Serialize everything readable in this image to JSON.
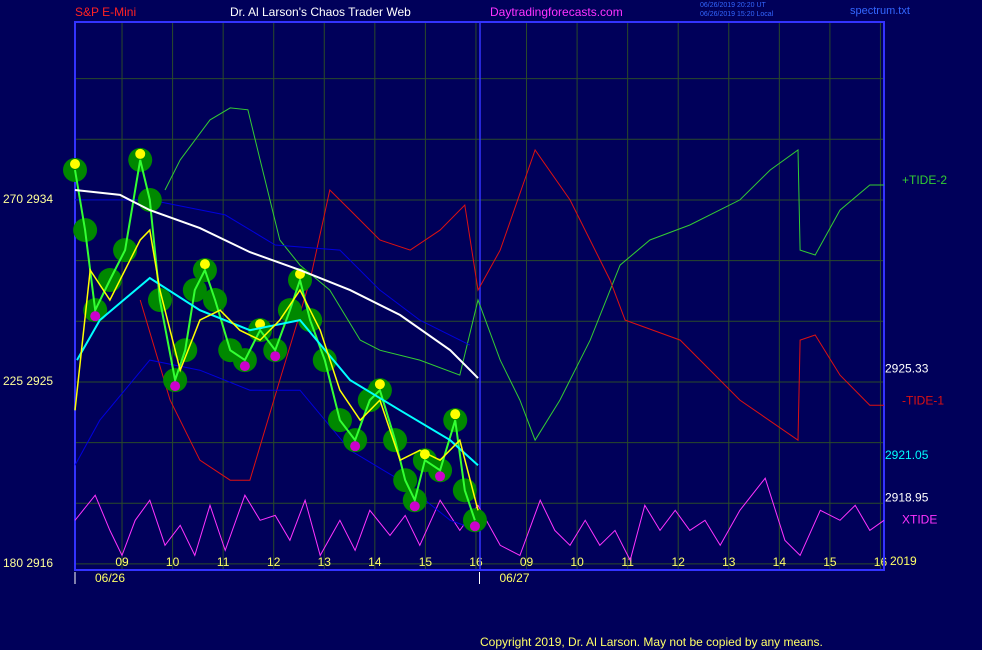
{
  "chart_data": {
    "type": "line",
    "title": "Dr. Al Larson's Chaos Trader Web",
    "symbol": "S&P E-Mini",
    "site": "Daytradingforecasts.com",
    "timestamps": [
      "06/26/2019 20:20 UT",
      "06/26/2019 15:20 Local"
    ],
    "file": "spectrum.txt",
    "copyright": "Copyright 2019, Dr. Al Larson. May not be copied by any means.",
    "year": "2019",
    "dates": [
      {
        "value": 0.07,
        "label": "06/26"
      },
      {
        "value": 8.07,
        "label": "06/27"
      }
    ],
    "xlim": [
      0.07,
      16.07
    ],
    "xticks": [
      {
        "value": 1,
        "label": "09"
      },
      {
        "value": 2,
        "label": "10"
      },
      {
        "value": 3,
        "label": "11"
      },
      {
        "value": 4,
        "label": "12"
      },
      {
        "value": 5,
        "label": "13"
      },
      {
        "value": 6,
        "label": "14"
      },
      {
        "value": 7,
        "label": "15"
      },
      {
        "value": 8,
        "label": "16"
      },
      {
        "value": 9,
        "label": "09"
      },
      {
        "value": 10,
        "label": "10"
      },
      {
        "value": 11,
        "label": "11"
      },
      {
        "value": 12,
        "label": "12"
      },
      {
        "value": 13,
        "label": "13"
      },
      {
        "value": 14,
        "label": "14"
      },
      {
        "value": 15,
        "label": "15"
      },
      {
        "value": 16,
        "label": "16"
      }
    ],
    "ylim": [
      2915.7,
      2942.8
    ],
    "yticks": [
      {
        "value": 2916,
        "label": "180 2916"
      },
      {
        "value": 2925,
        "label": "225 2925"
      },
      {
        "value": 2934,
        "label": "270 2934"
      }
    ],
    "ygrid": [
      2916,
      2919,
      2922,
      2925,
      2928,
      2931,
      2934,
      2937,
      2940
    ],
    "grid": true,
    "last_labels": [
      {
        "value": 2925.33,
        "label": "2925.33",
        "color": "#ffffff"
      },
      {
        "value": 2921.05,
        "label": "2921.05",
        "color": "#00ffff"
      },
      {
        "value": 2918.95,
        "label": "2918.95",
        "color": "#ffffff"
      }
    ],
    "series": [
      {
        "name": "+TIDE-2",
        "color": "#33cc33",
        "x": [
          1.85,
          2.15,
          2.74,
          3.14,
          3.49,
          3.73,
          4.12,
          4.52,
          5.11,
          5.71,
          6.1,
          6.89,
          7.68,
          8.04,
          8.48,
          8.87,
          9.17,
          9.66,
          10.26,
          10.85,
          11.44,
          12.23,
          13.22,
          13.82,
          14.37,
          14.41,
          14.71,
          15.2,
          15.79,
          16.07
        ],
        "values": [
          2934.49,
          2935.98,
          2937.96,
          2938.55,
          2938.46,
          2935.98,
          2932.02,
          2930.78,
          2929.54,
          2927.07,
          2926.57,
          2926.08,
          2925.34,
          2929.05,
          2926.08,
          2924.1,
          2922.12,
          2924.1,
          2927.07,
          2930.78,
          2932.02,
          2932.76,
          2934,
          2935.48,
          2936.47,
          2931.52,
          2931.28,
          2933.5,
          2934.74,
          2934.74
        ]
      },
      {
        "name": "-TIDE-1",
        "color": "#dd1111",
        "x": [
          1.36,
          1.95,
          2.54,
          3.14,
          3.53,
          4.12,
          4.72,
          5.11,
          5.51,
          6.1,
          6.7,
          7.29,
          7.78,
          8.04,
          8.48,
          9.17,
          9.86,
          10.65,
          10.95,
          12.04,
          13.22,
          14.37,
          14.41,
          14.71,
          15.2,
          15.79,
          16.07
        ],
        "values": [
          2929.05,
          2924.1,
          2921.13,
          2920.14,
          2920.14,
          2925.09,
          2930.04,
          2934.49,
          2933.5,
          2932.02,
          2931.52,
          2932.51,
          2933.75,
          2929.54,
          2931.52,
          2936.47,
          2934,
          2930.04,
          2928.06,
          2927.07,
          2924.1,
          2922.12,
          2927.07,
          2927.32,
          2925.34,
          2923.85,
          2923.85
        ]
      },
      {
        "name": "XTIDE",
        "color": "#ff33ff",
        "x": [
          0.07,
          0.47,
          0.76,
          1,
          1.26,
          1.55,
          1.85,
          2.15,
          2.44,
          2.74,
          3.04,
          3.43,
          3.73,
          4.03,
          4.32,
          4.62,
          4.92,
          5.31,
          5.61,
          5.9,
          6.3,
          6.6,
          6.89,
          7.29,
          7.68,
          8.04,
          8.48,
          8.87,
          9.27,
          9.56,
          9.86,
          10.16,
          10.45,
          10.75,
          11.05,
          11.34,
          11.64,
          11.94,
          12.23,
          12.53,
          12.83,
          13.22,
          13.72,
          14.11,
          14.41,
          14.81,
          15.2,
          15.5,
          15.79,
          16.07
        ],
        "values": [
          2918.16,
          2919.4,
          2917.66,
          2916.42,
          2918.16,
          2919.15,
          2916.92,
          2917.91,
          2916.42,
          2918.9,
          2916.67,
          2919.4,
          2918.16,
          2918.4,
          2917.17,
          2919.15,
          2916.42,
          2918.16,
          2916.67,
          2918.65,
          2917.41,
          2918.4,
          2916.92,
          2919.15,
          2917.66,
          2918.9,
          2916.92,
          2916.42,
          2919.15,
          2917.66,
          2916.92,
          2918.16,
          2916.92,
          2917.66,
          2916.18,
          2918.9,
          2917.66,
          2918.65,
          2917.66,
          2918.16,
          2916.92,
          2918.65,
          2920.24,
          2917.17,
          2916.42,
          2918.65,
          2918.16,
          2918.9,
          2917.66,
          2918.16
        ]
      },
      {
        "color": "#0000dd",
        "x": [
          0.07,
          1.55,
          3.04,
          4.03,
          5.31,
          6.1,
          6.89,
          7.88
        ],
        "values": [
          2934,
          2934,
          2933.26,
          2931.77,
          2931.52,
          2929.54,
          2928.06,
          2926.82
        ]
      },
      {
        "color": "#0000dd",
        "x": [
          0.07,
          0.56,
          1.55,
          2.54,
          3.53,
          4.52,
          5.51,
          6.5,
          7.49,
          8.04
        ],
        "values": [
          2920.88,
          2923.11,
          2926.08,
          2925.58,
          2924.59,
          2924.59,
          2921.62,
          2920.14,
          2918.16,
          2917.66
        ]
      },
      {
        "color": "#008800",
        "width": 22,
        "x": [
          0.07,
          0.27,
          0.47,
          0.76,
          1.06,
          1.36,
          1.55,
          1.75,
          2.05,
          2.25,
          2.44,
          2.64,
          2.84,
          3.14,
          3.43,
          3.73,
          4.03,
          4.32,
          4.52,
          4.72,
          5.01,
          5.31,
          5.61,
          5.9,
          6.1,
          6.4,
          6.6,
          6.79,
          6.99,
          7.29,
          7.59,
          7.78,
          7.98
        ],
        "values": [
          2935.48,
          2932.51,
          2928.55,
          2930.04,
          2931.52,
          2935.98,
          2934,
          2929.05,
          2925.09,
          2926.57,
          2929.54,
          2930.53,
          2929.05,
          2926.57,
          2926.08,
          2927.56,
          2926.57,
          2928.55,
          2930.04,
          2928.06,
          2926.08,
          2923.11,
          2922.12,
          2924.1,
          2924.59,
          2922.12,
          2920.14,
          2919.15,
          2921.13,
          2920.63,
          2923.11,
          2919.64,
          2918.16
        ],
        "markers": true
      },
      {
        "color": "#ffffff",
        "width": 2,
        "x": [
          0.07,
          0.96,
          1.55,
          2.54,
          3.53,
          4.52,
          5.51,
          6.5,
          7.49,
          8.04
        ],
        "values": [
          2934.49,
          2934.25,
          2933.5,
          2932.61,
          2931.42,
          2930.53,
          2929.54,
          2928.31,
          2926.57,
          2925.19
        ]
      },
      {
        "color": "#00ffff",
        "width": 2,
        "x": [
          0.11,
          0.56,
          1.55,
          2.54,
          3.53,
          4.52,
          5.51,
          6.5,
          7.49,
          8.04
        ],
        "values": [
          2926.08,
          2928.06,
          2930.14,
          2928.55,
          2927.56,
          2928.06,
          2925.09,
          2923.6,
          2922.12,
          2920.88
        ]
      },
      {
        "color": "#ffff00",
        "width": 1.5,
        "x": [
          0.07,
          0.37,
          0.76,
          1.36,
          1.55,
          1.75,
          2.15,
          2.54,
          2.94,
          3.33,
          3.73,
          4.12,
          4.52,
          4.92,
          5.31,
          5.71,
          6.1,
          6.5,
          6.89,
          7.29,
          7.68,
          8.04
        ],
        "values": [
          2923.6,
          2930.53,
          2929.05,
          2932.02,
          2932.51,
          2929.54,
          2925.58,
          2928.06,
          2928.55,
          2927.56,
          2927.07,
          2928.06,
          2929.54,
          2927.56,
          2924.59,
          2923.11,
          2924.1,
          2921.13,
          2921.62,
          2921.13,
          2922.12,
          2918.65
        ]
      }
    ]
  }
}
